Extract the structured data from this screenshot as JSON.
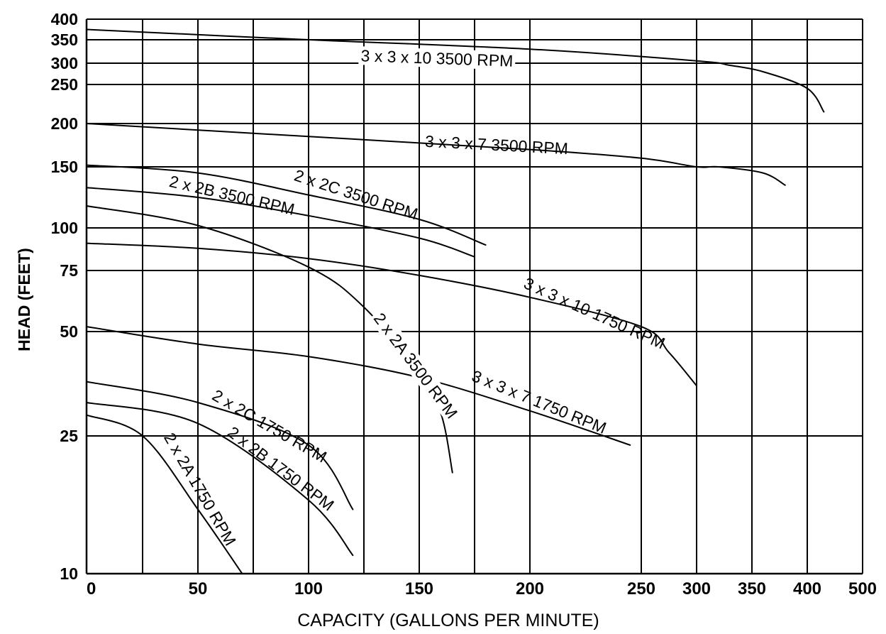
{
  "chart_data": {
    "type": "line",
    "xlabel": "CAPACITY (GALLONS PER MINUTE)",
    "ylabel": "HEAD (FEET)",
    "x_ticks": [
      "0",
      "50",
      "100",
      "150",
      "200",
      "250",
      "300",
      "350",
      "400",
      "500"
    ],
    "y_ticks": [
      "400",
      "350",
      "300",
      "250",
      "200",
      "150",
      "100",
      "75",
      "50",
      "25",
      "10"
    ],
    "grid": true,
    "series": [
      {
        "name": "3 x 3 x 10 3500 RPM",
        "x": [
          0,
          100,
          200,
          300,
          330,
          360,
          400,
          430
        ],
        "y": [
          375,
          350,
          330,
          305,
          295,
          280,
          245,
          215
        ]
      },
      {
        "name": "3 x 3 x 7 3500 RPM",
        "x": [
          0,
          100,
          200,
          250,
          300,
          320,
          360,
          380
        ],
        "y": [
          200,
          185,
          170,
          160,
          150,
          150,
          145,
          135
        ]
      },
      {
        "name": "2 x 2C 3500 RPM",
        "x": [
          0,
          50,
          100,
          150,
          180
        ],
        "y": [
          152,
          145,
          127,
          107,
          90
        ]
      },
      {
        "name": "2 x 2B 3500 RPM",
        "x": [
          0,
          50,
          100,
          150,
          175
        ],
        "y": [
          133,
          125,
          110,
          94,
          83
        ]
      },
      {
        "name": "2 x 2A 3500 RPM",
        "x": [
          0,
          50,
          100,
          125,
          150,
          160,
          165
        ],
        "y": [
          118,
          102,
          77,
          60,
          40,
          30,
          21
        ]
      },
      {
        "name": "3 x 3 x 10 1750 RPM",
        "x": [
          0,
          50,
          100,
          150,
          200,
          250,
          275,
          300
        ],
        "y": [
          91,
          88,
          82,
          73,
          64,
          52,
          45,
          37
        ]
      },
      {
        "name": "3 x 3 x 7 1750 RPM",
        "x": [
          0,
          50,
          100,
          150,
          200,
          245
        ],
        "y": [
          52,
          47,
          44,
          39,
          31,
          24
        ]
      },
      {
        "name": "2 x 2C 1750 RPM",
        "x": [
          0,
          50,
          100,
          120
        ],
        "y": [
          38,
          33,
          24,
          17
        ]
      },
      {
        "name": "2 x 2B 1750 RPM",
        "x": [
          0,
          50,
          100,
          120
        ],
        "y": [
          33,
          28,
          18,
          12
        ]
      },
      {
        "name": "2 x 2A 1750 RPM",
        "x": [
          0,
          25,
          50,
          70
        ],
        "y": [
          30,
          25,
          17,
          10
        ]
      }
    ]
  }
}
